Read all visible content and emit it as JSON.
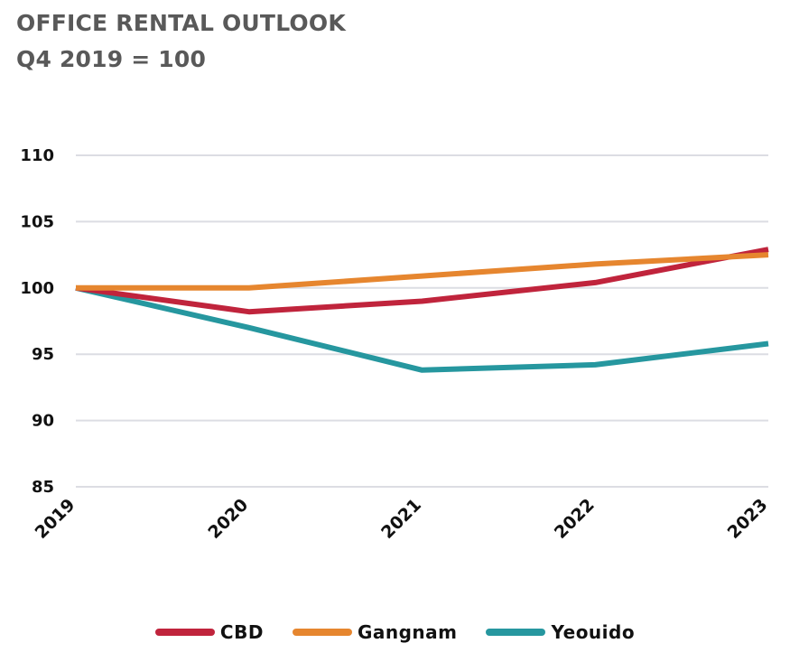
{
  "title": "OFFICE RENTAL OUTLOOK",
  "subtitle": "Q4 2019 = 100",
  "chart_data": {
    "type": "line",
    "x": [
      "2019",
      "2020",
      "2021",
      "2022",
      "2023"
    ],
    "ylim": [
      85,
      110
    ],
    "yticks": [
      "110",
      "105",
      "100",
      "95",
      "90",
      "85"
    ],
    "grid": true,
    "legend_position": "bottom",
    "series": [
      {
        "name": "CBD",
        "color": "#c0243c",
        "values": [
          100,
          98.2,
          99.0,
          100.4,
          102.9
        ]
      },
      {
        "name": "Gangnam",
        "color": "#e6862f",
        "values": [
          100,
          100,
          100.9,
          101.8,
          102.5
        ]
      },
      {
        "name": "Yeouido",
        "color": "#26979f",
        "values": [
          100,
          97.0,
          93.8,
          94.2,
          95.8
        ]
      }
    ]
  }
}
